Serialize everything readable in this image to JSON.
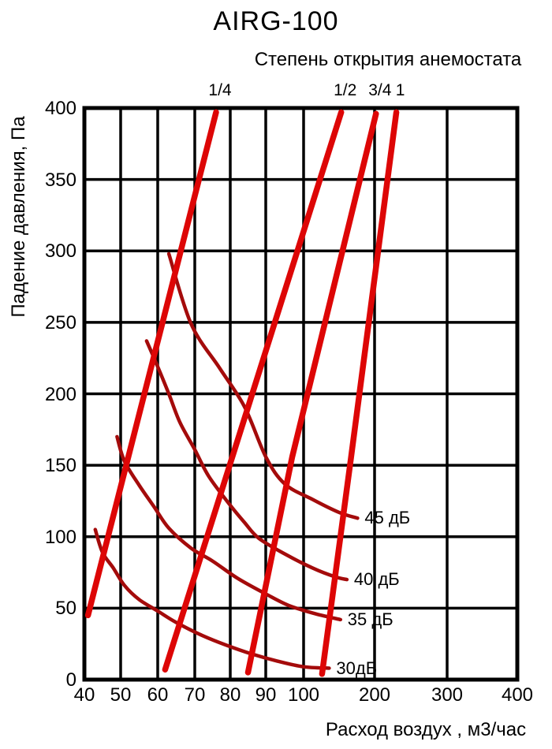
{
  "chart_data": {
    "type": "line",
    "title": "AIRG-100",
    "subtitle": "Степень открытия анемостата",
    "xlabel": "Расход воздух , м3/час",
    "ylabel": "Падение давления, Па",
    "x_scale": "pseudo-log",
    "x_ticks": [
      40,
      50,
      60,
      70,
      80,
      90,
      100,
      200,
      300,
      400
    ],
    "y_ticks": [
      0,
      50,
      100,
      150,
      200,
      250,
      300,
      350,
      400
    ],
    "xlim": [
      40,
      400
    ],
    "ylim": [
      0,
      400
    ],
    "grid": true,
    "colors": {
      "opening_lines": "#dd0606",
      "noise_curves": "#a40b0b",
      "grid": "#000000",
      "text": "#000000"
    },
    "series": [
      {
        "name": "1/4",
        "group": "opening",
        "points": [
          [
            41,
            45
          ],
          [
            76,
            397
          ]
        ]
      },
      {
        "name": "1/2",
        "group": "opening",
        "points": [
          [
            62,
            7
          ],
          [
            153,
            397
          ]
        ]
      },
      {
        "name": "3/4",
        "group": "opening",
        "points": [
          [
            85,
            5
          ],
          [
            97,
            156
          ],
          [
            202,
            396
          ]
        ]
      },
      {
        "name": "1",
        "group": "opening",
        "points": [
          [
            126,
            4
          ],
          [
            167,
            156
          ],
          [
            230,
            397
          ]
        ]
      },
      {
        "name": "45 дБ",
        "group": "noise",
        "points": [
          [
            63,
            298
          ],
          [
            69,
            249
          ],
          [
            77,
            218
          ],
          [
            84,
            191
          ],
          [
            90,
            156
          ],
          [
            95,
            137
          ],
          [
            113,
            126
          ],
          [
            150,
            117
          ],
          [
            176,
            113
          ]
        ]
      },
      {
        "name": "40 дБ",
        "group": "noise",
        "points": [
          [
            57,
            237
          ],
          [
            60,
            219
          ],
          [
            63,
            200
          ],
          [
            66,
            180
          ],
          [
            70,
            161
          ],
          [
            74,
            142
          ],
          [
            80,
            122
          ],
          [
            84,
            110
          ],
          [
            88,
            99
          ],
          [
            95,
            88
          ],
          [
            113,
            78
          ],
          [
            144,
            72
          ],
          [
            161,
            70
          ]
        ]
      },
      {
        "name": "35 дБ",
        "group": "noise",
        "points": [
          [
            49,
            170
          ],
          [
            51,
            153
          ],
          [
            55,
            136
          ],
          [
            59,
            121
          ],
          [
            63,
            106
          ],
          [
            69,
            92
          ],
          [
            75,
            83
          ],
          [
            82,
            71
          ],
          [
            90,
            60
          ],
          [
            96,
            52
          ],
          [
            117,
            46
          ],
          [
            152,
            42
          ]
        ]
      },
      {
        "name": "30дБ",
        "group": "noise",
        "points": [
          [
            43,
            105
          ],
          [
            45,
            89
          ],
          [
            48,
            78
          ],
          [
            51,
            66
          ],
          [
            55,
            56
          ],
          [
            60,
            48
          ],
          [
            65,
            40
          ],
          [
            72,
            31
          ],
          [
            79,
            24
          ],
          [
            86,
            18
          ],
          [
            93,
            13
          ],
          [
            100,
            9
          ],
          [
            136,
            8
          ]
        ]
      }
    ]
  }
}
